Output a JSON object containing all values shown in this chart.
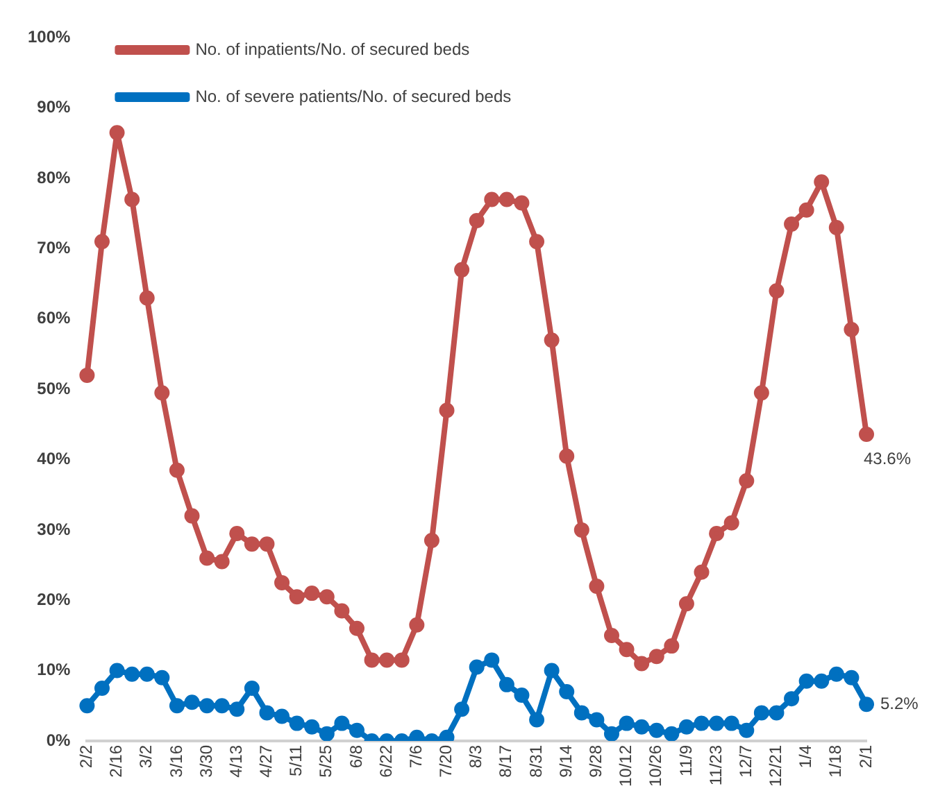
{
  "chart_data": {
    "type": "line",
    "categories": [
      "2/2",
      null,
      "2/16",
      null,
      "3/2",
      null,
      "3/16",
      null,
      "3/30",
      null,
      "4/13",
      null,
      "4/27",
      null,
      "5/11",
      null,
      "5/25",
      null,
      "6/8",
      null,
      "6/22",
      null,
      "7/6",
      null,
      "7/20",
      null,
      "8/3",
      null,
      "8/17",
      null,
      "8/31",
      null,
      "9/14",
      null,
      "9/28",
      null,
      "10/12",
      null,
      "10/26",
      null,
      "11/9",
      null,
      "11/23",
      null,
      "12/7",
      null,
      "12/21",
      null,
      "1/4",
      null,
      "1/18",
      null,
      "2/1"
    ],
    "series": [
      {
        "name": "No. of inpatients/No. of secured beds",
        "color": "#c0504d",
        "values": [
          52,
          71,
          86.5,
          77,
          63,
          49.5,
          38.5,
          32,
          26,
          25.5,
          29.5,
          28,
          28,
          22.5,
          20.5,
          21,
          20.5,
          18.5,
          16,
          11.5,
          11.5,
          11.5,
          16.5,
          28.5,
          47,
          67,
          74,
          77,
          77,
          76.5,
          71,
          57,
          40.5,
          30,
          22,
          15,
          13,
          11,
          12,
          13.5,
          19.5,
          24,
          29.5,
          31,
          37,
          49.5,
          64,
          73.5,
          75.5,
          79.5,
          73,
          58.5,
          43.6
        ],
        "value_labels": [
          null,
          null,
          null,
          null,
          null,
          null,
          null,
          null,
          null,
          null,
          null,
          null,
          null,
          null,
          null,
          null,
          null,
          null,
          null,
          null,
          null,
          null,
          null,
          null,
          null,
          null,
          null,
          null,
          null,
          null,
          null,
          null,
          null,
          null,
          null,
          null,
          null,
          null,
          null,
          null,
          null,
          null,
          null,
          null,
          null,
          null,
          null,
          null,
          null,
          null,
          null,
          null,
          "43.6%"
        ]
      },
      {
        "name": "No. of severe patients/No. of secured beds",
        "color": "#0070c0",
        "values": [
          5,
          7.5,
          10,
          9.5,
          9.5,
          9,
          5,
          5.5,
          5,
          5,
          4.5,
          7.5,
          4,
          3.5,
          2.5,
          2,
          1,
          2.5,
          1.5,
          0,
          0,
          0,
          0.5,
          0,
          0.5,
          4.5,
          10.5,
          11.5,
          8,
          6.5,
          3,
          10,
          7,
          4,
          3,
          1,
          2.5,
          2,
          1.5,
          1,
          2,
          2.5,
          2.5,
          2.5,
          1.5,
          4,
          4,
          6,
          8.5,
          8.5,
          9.5,
          9,
          5.2
        ],
        "value_labels": [
          null,
          null,
          null,
          null,
          null,
          null,
          null,
          null,
          null,
          null,
          null,
          null,
          null,
          null,
          null,
          null,
          null,
          null,
          null,
          null,
          null,
          null,
          null,
          null,
          null,
          null,
          null,
          null,
          null,
          null,
          null,
          null,
          null,
          null,
          null,
          null,
          null,
          null,
          null,
          null,
          null,
          null,
          null,
          null,
          null,
          null,
          null,
          null,
          null,
          null,
          null,
          null,
          "5.2%"
        ]
      }
    ],
    "ylim": [
      0,
      100
    ],
    "yticks": [
      {
        "value": 0,
        "label": "0%"
      },
      {
        "value": 10,
        "label": "10%"
      },
      {
        "value": 20,
        "label": "20%"
      },
      {
        "value": 30,
        "label": "30%"
      },
      {
        "value": 40,
        "label": "40%"
      },
      {
        "value": 50,
        "label": "50%"
      },
      {
        "value": 60,
        "label": "60%"
      },
      {
        "value": 70,
        "label": "70%"
      },
      {
        "value": 80,
        "label": "80%"
      },
      {
        "value": 90,
        "label": "90%"
      },
      {
        "value": 100,
        "label": "100%"
      }
    ],
    "grid": false,
    "legend": "top left",
    "marker": "circle",
    "line_style": "solid"
  }
}
